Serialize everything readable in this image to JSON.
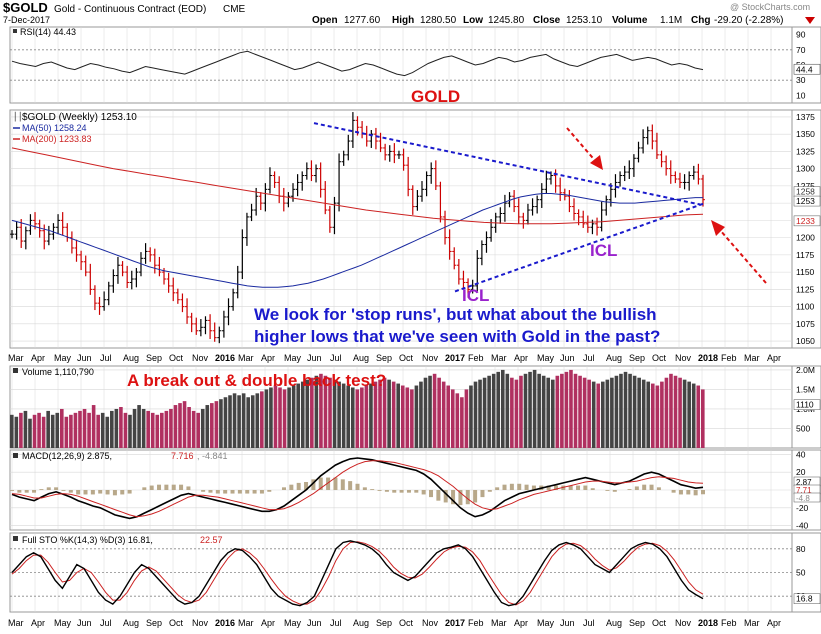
{
  "header": {
    "symbol": "$GOLD",
    "description": "Gold - Continuous Contract (EOD)",
    "exchange": "CME",
    "date": "7-Dec-2017",
    "watermark": "@ StockCharts.com",
    "open_label": "Open",
    "open": "1277.60",
    "high_label": "High",
    "high": "1280.50",
    "low_label": "Low",
    "low": "1245.80",
    "close_label": "Close",
    "close": "1253.10",
    "volume_label": "Volume",
    "volume": "1.1M",
    "chg_label": "Chg",
    "chg": "-29.20 (-2.28%)",
    "chg_icon": "down-triangle-icon"
  },
  "annotations": {
    "gold": "GOLD",
    "icl_low": "ICL",
    "icl_mid": "ICL",
    "note_line1": "We look for 'stop runs', but what about the bullish",
    "note_line2": "higher lows that we've seen with Gold in the past?",
    "volume_note": "A break out & double back test?"
  },
  "colors": {
    "up_bar": "#000000",
    "down_bar": "#cc0000",
    "ma50": "#1a2aa0",
    "ma200": "#cc2222",
    "trendline": "#1a1acc",
    "annotation_red": "#dd1111",
    "annotation_blue": "#1a1acc",
    "icl": "#9922cc",
    "volume_up": "#444444",
    "volume_down": "#b03060",
    "panel_bg": "#ffffff",
    "grid": "#d8d8d8"
  },
  "x_axis": {
    "labels_top": [
      "Mar",
      "Apr",
      "May",
      "Jun",
      "Jul",
      "Aug",
      "Sep",
      "Oct",
      "Nov",
      "2016",
      "Mar",
      "Apr",
      "May",
      "Jun",
      "Jul",
      "Aug",
      "Sep",
      "Oct",
      "Nov",
      "2017",
      "Feb",
      "Mar",
      "Apr",
      "May",
      "Jun",
      "Jul",
      "Aug",
      "Sep",
      "Oct",
      "Nov",
      "2018",
      "Feb",
      "Mar",
      "Apr"
    ],
    "labels_bottom": [
      "Mar",
      "Apr",
      "May",
      "Jun",
      "Jul",
      "Aug",
      "Sep",
      "Oct",
      "Nov",
      "2016",
      "Mar",
      "Apr",
      "May",
      "Jun",
      "Jul",
      "Aug",
      "Sep",
      "Oct",
      "Nov",
      "2017",
      "Feb",
      "Mar",
      "Apr",
      "May",
      "Jun",
      "Jul",
      "Aug",
      "Sep",
      "Oct",
      "Nov",
      "2018",
      "Feb",
      "Mar",
      "Apr"
    ]
  },
  "chart_data": [
    {
      "panel": "rsi",
      "type": "line",
      "title": "RSI(14) 44.43",
      "yticks": [
        "90",
        "70",
        "50",
        "30",
        "10"
      ],
      "current_label": "44.4",
      "ylim": [
        0,
        100
      ],
      "values": [
        55,
        52,
        50,
        48,
        52,
        54,
        50,
        46,
        44,
        48,
        52,
        50,
        47,
        45,
        42,
        40,
        44,
        48,
        46,
        44,
        42,
        40,
        38,
        42,
        46,
        50,
        54,
        58,
        62,
        66,
        68,
        64,
        60,
        56,
        52,
        48,
        44,
        46,
        50,
        54,
        50,
        46,
        42,
        44,
        48,
        52,
        50,
        46,
        42,
        38,
        36,
        40,
        46,
        52,
        56,
        60,
        62,
        58,
        54,
        50,
        52,
        56,
        60,
        58,
        54,
        56,
        60,
        62,
        64,
        58,
        54,
        50,
        48,
        52,
        56,
        60,
        62,
        64,
        60,
        56,
        58,
        60,
        58,
        54,
        50,
        52,
        50,
        46,
        44
      ]
    },
    {
      "panel": "price",
      "type": "ohlc",
      "title": "$GOLD (Weekly) 1253.10",
      "legend": [
        {
          "name": "MA(50) 1258.24",
          "color": "#1a2aa0"
        },
        {
          "name": "MA(200) 1233.83",
          "color": "#cc2222"
        }
      ],
      "yticks": [
        "1375",
        "1350",
        "1325",
        "1300",
        "1275",
        "1250",
        "1225",
        "1200",
        "1175",
        "1150",
        "1125",
        "1100",
        "1075",
        "1050"
      ],
      "current_labels": [
        "1258",
        "1253",
        "1233"
      ],
      "ylim": [
        1040,
        1385
      ],
      "close": [
        1205,
        1215,
        1195,
        1210,
        1225,
        1220,
        1210,
        1195,
        1205,
        1215,
        1225,
        1215,
        1200,
        1185,
        1175,
        1165,
        1150,
        1125,
        1105,
        1100,
        1110,
        1130,
        1145,
        1160,
        1150,
        1135,
        1140,
        1150,
        1170,
        1180,
        1175,
        1160,
        1150,
        1140,
        1130,
        1120,
        1110,
        1100,
        1085,
        1075,
        1065,
        1070,
        1080,
        1065,
        1055,
        1065,
        1085,
        1100,
        1120,
        1150,
        1200,
        1230,
        1240,
        1260,
        1250,
        1270,
        1290,
        1280,
        1260,
        1250,
        1260,
        1270,
        1280,
        1290,
        1300,
        1290,
        1300,
        1270,
        1240,
        1215,
        1250,
        1310,
        1320,
        1340,
        1370,
        1360,
        1350,
        1340,
        1350,
        1340,
        1330,
        1320,
        1325,
        1320,
        1320,
        1305,
        1270,
        1245,
        1260,
        1270,
        1290,
        1300,
        1275,
        1230,
        1200,
        1180,
        1160,
        1140,
        1135,
        1125,
        1130,
        1170,
        1190,
        1200,
        1215,
        1230,
        1235,
        1250,
        1260,
        1245,
        1230,
        1225,
        1240,
        1245,
        1255,
        1270,
        1285,
        1290,
        1275,
        1265,
        1260,
        1245,
        1235,
        1230,
        1220,
        1215,
        1220,
        1215,
        1240,
        1255,
        1270,
        1280,
        1290,
        1295,
        1300,
        1315,
        1330,
        1345,
        1355,
        1340,
        1320,
        1310,
        1300,
        1290,
        1285,
        1280,
        1280,
        1290,
        1295,
        1285,
        1255
      ],
      "ma50": [
        1225,
        1222,
        1219,
        1216,
        1213,
        1210,
        1206,
        1202,
        1198,
        1194,
        1190,
        1186,
        1182,
        1178,
        1174,
        1170,
        1166,
        1162,
        1158,
        1155,
        1152,
        1150,
        1148,
        1146,
        1144,
        1142,
        1140,
        1138,
        1136,
        1134,
        1132,
        1130,
        1129,
        1128,
        1128,
        1128,
        1129,
        1130,
        1132,
        1134,
        1137,
        1140,
        1144,
        1148,
        1152,
        1156,
        1160,
        1165,
        1170,
        1175,
        1180,
        1185,
        1190,
        1195,
        1200,
        1205,
        1210,
        1215,
        1220,
        1225,
        1230,
        1235,
        1240,
        1244,
        1248,
        1252,
        1256,
        1259,
        1261,
        1263,
        1264,
        1264,
        1263,
        1262,
        1260,
        1258,
        1256,
        1254,
        1252,
        1251,
        1250,
        1250,
        1250,
        1251,
        1252,
        1253,
        1254,
        1255,
        1256,
        1257,
        1258,
        1258
      ],
      "ma200": [
        1330,
        1325,
        1320,
        1315,
        1310,
        1305,
        1300,
        1296,
        1292,
        1288,
        1284,
        1280,
        1276,
        1272,
        1268,
        1264,
        1260,
        1256,
        1252,
        1248,
        1244,
        1240,
        1237,
        1234,
        1231,
        1228,
        1226,
        1224,
        1222,
        1221,
        1220,
        1220,
        1220,
        1221,
        1222,
        1223,
        1225,
        1227,
        1229,
        1231,
        1233,
        1234
      ]
    },
    {
      "panel": "volume",
      "type": "bar",
      "title": "Volume 1,110,790",
      "yticks": [
        "2.0M",
        "1.5M",
        "1.0M",
        "500"
      ],
      "current_label": "1110",
      "ylim": [
        0,
        2100000
      ],
      "values": [
        0.85,
        0.8,
        0.9,
        0.95,
        0.75,
        0.85,
        0.9,
        0.8,
        0.95,
        0.85,
        0.9,
        1.0,
        0.8,
        0.85,
        0.9,
        0.95,
        1.0,
        0.9,
        1.1,
        0.85,
        0.9,
        0.8,
        0.95,
        1.0,
        1.05,
        0.9,
        0.85,
        1.0,
        1.1,
        1.0,
        0.95,
        0.9,
        0.85,
        0.9,
        0.95,
        1.0,
        1.1,
        1.15,
        1.2,
        1.05,
        0.95,
        0.9,
        1.0,
        1.1,
        1.15,
        1.2,
        1.25,
        1.3,
        1.35,
        1.4,
        1.35,
        1.4,
        1.3,
        1.35,
        1.4,
        1.45,
        1.5,
        1.55,
        1.6,
        1.55,
        1.5,
        1.55,
        1.6,
        1.65,
        1.7,
        1.75,
        1.8,
        1.85,
        1.9,
        1.85,
        1.8,
        1.75,
        1.7,
        1.65,
        1.6,
        1.55,
        1.5,
        1.55,
        1.6,
        1.65,
        1.7,
        1.75,
        1.8,
        1.75,
        1.7,
        1.65,
        1.6,
        1.55,
        1.5,
        1.6,
        1.7,
        1.8,
        1.85,
        1.9,
        1.8,
        1.7,
        1.6,
        1.5,
        1.4,
        1.3,
        1.5,
        1.6,
        1.7,
        1.75,
        1.8,
        1.85,
        1.9,
        1.95,
        2.0,
        1.9,
        1.8,
        1.75,
        1.85,
        1.9,
        1.95,
        2.0,
        1.9,
        1.85,
        1.8,
        1.75,
        1.85,
        1.9,
        1.95,
        2.0,
        1.9,
        1.85,
        1.8,
        1.75,
        1.7,
        1.65,
        1.7,
        1.75,
        1.8,
        1.85,
        1.9,
        1.95,
        1.9,
        1.85,
        1.8,
        1.75,
        1.7,
        1.65,
        1.6,
        1.7,
        1.8,
        1.9,
        1.85,
        1.8,
        1.75,
        1.7,
        1.65,
        1.6,
        1.5
      ]
    },
    {
      "panel": "macd",
      "type": "line",
      "title": "MACD(12,26,9) 2.875, 7.716, -4.841",
      "yticks": [
        "40",
        "20",
        "0",
        "-20",
        "-40"
      ],
      "current_labels": [
        "2.87",
        "7.71",
        "-4.8"
      ],
      "ylim": [
        -45,
        45
      ],
      "macd": [
        -5,
        -8,
        -10,
        -12,
        -8,
        -4,
        -2,
        -5,
        -8,
        -12,
        -15,
        -18,
        -20,
        -24,
        -28,
        -30,
        -32,
        -30,
        -26,
        -22,
        -18,
        -14,
        -10,
        -6,
        -4,
        -6,
        -8,
        -10,
        -12,
        -14,
        -16,
        -18,
        -20,
        -22,
        -24,
        -24,
        -22,
        -18,
        -12,
        -6,
        0,
        8,
        16,
        22,
        28,
        32,
        35,
        36,
        35,
        34,
        32,
        30,
        28,
        26,
        24,
        22,
        18,
        12,
        4,
        -4,
        -12,
        -20,
        -26,
        -30,
        -28,
        -24,
        -18,
        -12,
        -8,
        -4,
        -2,
        0,
        2,
        4,
        6,
        8,
        10,
        12,
        14,
        12,
        10,
        8,
        6,
        8,
        10,
        14,
        18,
        20,
        18,
        14,
        10,
        6,
        4,
        2,
        3
      ],
      "signal": [
        -4,
        -5,
        -7,
        -9,
        -9,
        -7,
        -5,
        -4,
        -5,
        -7,
        -10,
        -13,
        -16,
        -19,
        -22,
        -25,
        -28,
        -30,
        -29,
        -27,
        -24,
        -20,
        -16,
        -12,
        -8,
        -6,
        -6,
        -7,
        -8,
        -10,
        -12,
        -14,
        -16,
        -18,
        -20,
        -22,
        -22,
        -21,
        -18,
        -14,
        -9,
        -4,
        2,
        8,
        14,
        20,
        25,
        29,
        32,
        33,
        33,
        32,
        31,
        29,
        27,
        25,
        23,
        20,
        16,
        10,
        4,
        -3,
        -10,
        -16,
        -20,
        -22,
        -21,
        -18,
        -15,
        -11,
        -8,
        -5,
        -3,
        -1,
        1,
        3,
        5,
        7,
        9,
        10,
        10,
        9,
        8,
        8,
        9,
        10,
        12,
        14,
        15,
        14,
        13,
        11,
        9,
        8,
        7.7
      ],
      "histogram": [
        -1,
        -3,
        -3,
        -3,
        1,
        3,
        3,
        -1,
        -3,
        -5,
        -5,
        -5,
        -4,
        -5,
        -6,
        -5,
        -4,
        0,
        3,
        5,
        6,
        6,
        6,
        6,
        4,
        0,
        -2,
        -3,
        -4,
        -4,
        -4,
        -4,
        -4,
        -4,
        -4,
        -2,
        0,
        3,
        6,
        8,
        9,
        12,
        14,
        14,
        14,
        12,
        10,
        7,
        3,
        1,
        -1,
        -2,
        -3,
        -3,
        -3,
        -3,
        -5,
        -8,
        -12,
        -14,
        -16,
        -17,
        -16,
        -14,
        -8,
        -2,
        3,
        6,
        7,
        7,
        6,
        5,
        5,
        5,
        5,
        5,
        5,
        5,
        5,
        2,
        0,
        -1,
        -2,
        0,
        1,
        4,
        6,
        6,
        3,
        0,
        -3,
        -5,
        -5,
        -6,
        -4.8
      ]
    },
    {
      "panel": "sto",
      "type": "line",
      "title": "Full STO %K(14,3) %D(3) 16.81, 22.57",
      "yticks": [
        "80",
        "50",
        "20"
      ],
      "current_label": "16.8",
      "ylim": [
        0,
        100
      ],
      "k": [
        50,
        60,
        70,
        75,
        70,
        55,
        40,
        30,
        45,
        60,
        55,
        40,
        25,
        15,
        10,
        20,
        35,
        50,
        60,
        55,
        45,
        35,
        25,
        15,
        10,
        12,
        20,
        35,
        50,
        65,
        75,
        80,
        78,
        70,
        60,
        45,
        30,
        20,
        15,
        10,
        8,
        12,
        20,
        40,
        60,
        80,
        88,
        90,
        88,
        85,
        80,
        72,
        60,
        50,
        45,
        40,
        45,
        55,
        65,
        75,
        80,
        82,
        85,
        80,
        70,
        55,
        40,
        25,
        12,
        8,
        10,
        20,
        35,
        50,
        65,
        78,
        85,
        88,
        85,
        80,
        70,
        60,
        55,
        50,
        60,
        70,
        80,
        85,
        88,
        86,
        80,
        70,
        55,
        40,
        28,
        22,
        17
      ],
      "d": [
        48,
        55,
        65,
        72,
        72,
        63,
        50,
        38,
        40,
        50,
        55,
        50,
        38,
        25,
        15,
        15,
        25,
        40,
        52,
        57,
        52,
        42,
        32,
        22,
        15,
        12,
        15,
        25,
        40,
        55,
        68,
        77,
        80,
        75,
        67,
        55,
        42,
        30,
        20,
        14,
        10,
        10,
        15,
        28,
        45,
        65,
        80,
        88,
        89,
        87,
        83,
        77,
        68,
        57,
        49,
        44,
        43,
        48,
        57,
        67,
        76,
        81,
        83,
        82,
        76,
        65,
        50,
        36,
        22,
        12,
        9,
        14,
        25,
        40,
        55,
        70,
        80,
        86,
        87,
        84,
        77,
        67,
        59,
        53,
        56,
        64,
        74,
        82,
        86,
        87,
        84,
        77,
        66,
        52,
        38,
        28,
        22.5
      ]
    }
  ]
}
